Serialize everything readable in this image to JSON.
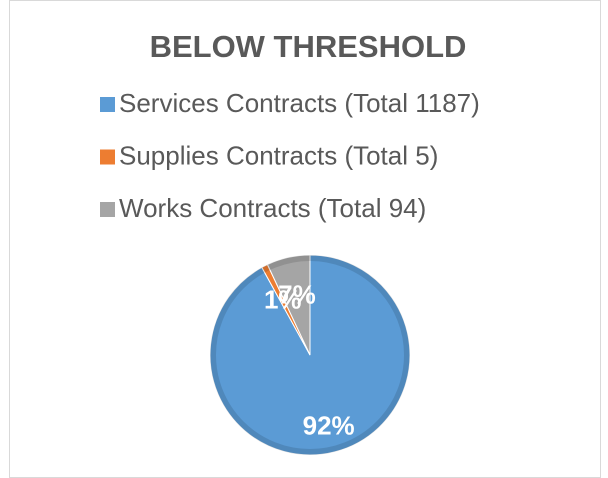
{
  "chart_data": {
    "type": "pie",
    "title": "BELOW THRESHOLD",
    "categories": [
      "Services Contracts (Total 1187)",
      "Supplies Contracts (Total 5)",
      "Works Contracts (Total 94)"
    ],
    "values": [
      92,
      1,
      7
    ],
    "value_labels": [
      "92%",
      "1%",
      "7%"
    ],
    "colors": [
      "#5b9bd5",
      "#ed7d31",
      "#a5a5a5"
    ],
    "legend": "top"
  }
}
